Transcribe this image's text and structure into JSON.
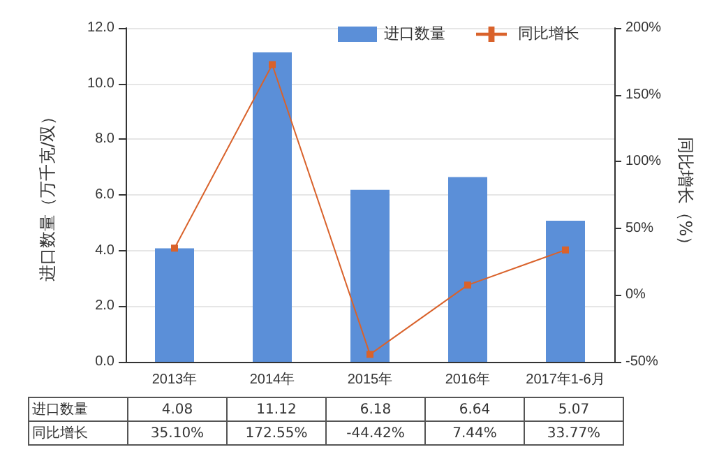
{
  "chart_data": {
    "type": "bar",
    "ylabel": "进口数量（万千克/双）",
    "y2label": "同比增长（%）",
    "categories": [
      "2013年",
      "2014年",
      "2015年",
      "2016年",
      "2017年1-6月"
    ],
    "series": [
      {
        "name": "进口数量",
        "color": "#5b8fd8",
        "values": [
          4.08,
          11.12,
          6.18,
          6.64,
          5.07
        ],
        "value_labels": [
          "4.08",
          "11.12",
          "6.18",
          "6.64",
          "5.07"
        ]
      },
      {
        "name": "同比增长",
        "type": "line",
        "axis": "y2",
        "color": "#d9622b",
        "marker": "square",
        "values": [
          35.1,
          172.55,
          -44.42,
          7.44,
          33.77
        ],
        "value_labels": [
          "35.10%",
          "172.55%",
          "-44.42%",
          "7.44%",
          "33.77%"
        ]
      }
    ],
    "ylim": [
      0,
      12
    ],
    "yticks": [
      {
        "value": 0,
        "label": "0.0"
      },
      {
        "value": 2,
        "label": "2.0"
      },
      {
        "value": 4,
        "label": "4.0"
      },
      {
        "value": 6,
        "label": "6.0"
      },
      {
        "value": 8,
        "label": "8.0"
      },
      {
        "value": 10,
        "label": "10.0"
      },
      {
        "value": 12,
        "label": "12.0"
      }
    ],
    "y2lim": [
      -50,
      200
    ],
    "y2ticks": [
      {
        "value": -50,
        "label": "-50%"
      },
      {
        "value": 0,
        "label": "0%"
      },
      {
        "value": 50,
        "label": "50%"
      },
      {
        "value": 100,
        "label": "100%"
      },
      {
        "value": 150,
        "label": "150%"
      },
      {
        "value": 200,
        "label": "200%"
      }
    ],
    "grid": "y",
    "legend": "top right"
  }
}
